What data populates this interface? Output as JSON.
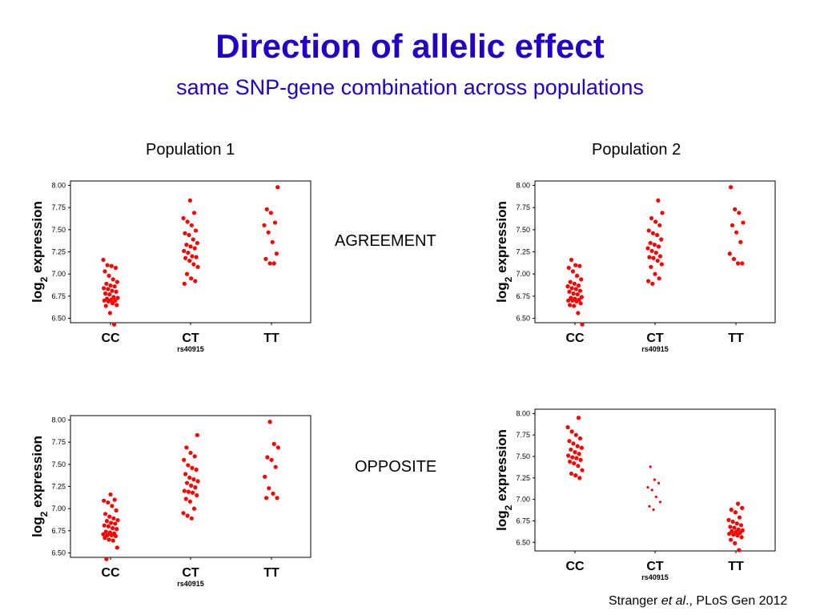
{
  "title": "Direction of allelic effect",
  "subtitle": "same SNP-gene combination across populations",
  "population_labels": [
    "Population 1",
    "Population 2"
  ],
  "row_labels": [
    "AGREEMENT",
    "OPPOSITE"
  ],
  "citation": {
    "author": "Stranger ",
    "etal": "et al",
    "rest": "., PLoS Gen 2012"
  },
  "chart_data": [
    {
      "type": "scatter",
      "title": "",
      "xlabel": "rs40915",
      "ylabel_base": "log",
      "ylabel_sub": "2",
      "ylabel_rest": " expression",
      "categories": [
        "CC",
        "CT",
        "TT"
      ],
      "ylim": [
        6.45,
        8.05
      ],
      "yticks": [
        "8.00",
        "7.75",
        "7.50",
        "7.25",
        "7.00",
        "6.75",
        "6.50"
      ],
      "color": "#ff0000",
      "groups": [
        {
          "category": "CC",
          "values": [
            7.16,
            7.1,
            7.09,
            7.07,
            7.03,
            6.98,
            6.94,
            6.91,
            6.89,
            6.87,
            6.86,
            6.84,
            6.83,
            6.81,
            6.8,
            6.78,
            6.77,
            6.74,
            6.73,
            6.72,
            6.71,
            6.7,
            6.7,
            6.69,
            6.67,
            6.65,
            6.64,
            6.56,
            6.43
          ]
        },
        {
          "category": "CT",
          "values": [
            7.83,
            7.69,
            7.63,
            7.59,
            7.55,
            7.49,
            7.46,
            7.44,
            7.39,
            7.35,
            7.33,
            7.31,
            7.29,
            7.26,
            7.24,
            7.2,
            7.19,
            7.18,
            7.15,
            7.11,
            7.08,
            7.0,
            6.95,
            6.92,
            6.89
          ]
        },
        {
          "category": "TT",
          "values": [
            7.98,
            7.73,
            7.69,
            7.58,
            7.55,
            7.47,
            7.36,
            7.23,
            7.17,
            7.12,
            7.12
          ]
        }
      ]
    },
    {
      "type": "scatter",
      "title": "",
      "xlabel": "rs40915",
      "ylabel_base": "log",
      "ylabel_sub": "2",
      "ylabel_rest": " expression",
      "categories": [
        "CC",
        "CT",
        "TT"
      ],
      "ylim": [
        6.45,
        8.05
      ],
      "yticks": [
        "8.00",
        "7.75",
        "7.50",
        "7.25",
        "7.00",
        "6.75",
        "6.50"
      ],
      "color": "#ff0000",
      "groups": [
        {
          "category": "CC",
          "values": [
            7.16,
            7.1,
            7.09,
            7.07,
            7.03,
            6.98,
            6.94,
            6.91,
            6.89,
            6.87,
            6.86,
            6.84,
            6.83,
            6.81,
            6.8,
            6.78,
            6.77,
            6.74,
            6.73,
            6.72,
            6.71,
            6.7,
            6.7,
            6.69,
            6.67,
            6.65,
            6.64,
            6.56,
            6.43
          ]
        },
        {
          "category": "CT",
          "values": [
            7.83,
            7.69,
            7.63,
            7.59,
            7.55,
            7.49,
            7.46,
            7.44,
            7.39,
            7.35,
            7.33,
            7.31,
            7.29,
            7.26,
            7.24,
            7.2,
            7.19,
            7.18,
            7.15,
            7.11,
            7.08,
            7.0,
            6.95,
            6.92,
            6.89
          ]
        },
        {
          "category": "TT",
          "values": [
            7.98,
            7.73,
            7.69,
            7.58,
            7.55,
            7.47,
            7.36,
            7.23,
            7.17,
            7.12,
            7.12
          ]
        }
      ]
    },
    {
      "type": "scatter",
      "title": "",
      "xlabel": "rs40915",
      "ylabel_base": "log",
      "ylabel_sub": "2",
      "ylabel_rest": " expression",
      "categories": [
        "CC",
        "CT",
        "TT"
      ],
      "ylim": [
        6.45,
        8.05
      ],
      "yticks": [
        "8.00",
        "7.75",
        "7.50",
        "7.25",
        "7.00",
        "6.75",
        "6.50"
      ],
      "color": "#ff0000",
      "groups": [
        {
          "category": "CC",
          "values": [
            7.16,
            7.1,
            7.09,
            7.07,
            7.03,
            6.98,
            6.94,
            6.91,
            6.89,
            6.87,
            6.86,
            6.84,
            6.83,
            6.81,
            6.8,
            6.78,
            6.77,
            6.74,
            6.73,
            6.72,
            6.71,
            6.7,
            6.7,
            6.69,
            6.67,
            6.65,
            6.64,
            6.56,
            6.43
          ]
        },
        {
          "category": "CT",
          "values": [
            7.83,
            7.69,
            7.63,
            7.59,
            7.55,
            7.49,
            7.46,
            7.44,
            7.39,
            7.35,
            7.33,
            7.31,
            7.29,
            7.26,
            7.24,
            7.2,
            7.19,
            7.18,
            7.15,
            7.11,
            7.08,
            7.0,
            6.95,
            6.92,
            6.89
          ]
        },
        {
          "category": "TT",
          "values": [
            7.98,
            7.73,
            7.69,
            7.58,
            7.55,
            7.47,
            7.36,
            7.23,
            7.17,
            7.12,
            7.12
          ]
        }
      ]
    },
    {
      "type": "scatter",
      "title": "",
      "xlabel": "rs40915",
      "ylabel_base": "log",
      "ylabel_sub": "2",
      "ylabel_rest": " expression",
      "categories": [
        "CC",
        "CT",
        "TT"
      ],
      "ylim": [
        6.4,
        8.05
      ],
      "yticks": [
        "8.00",
        "7.75",
        "7.50",
        "7.25",
        "7.00",
        "6.75",
        "6.50"
      ],
      "color": "#ff0000",
      "groups": [
        {
          "category": "CC",
          "values": [
            7.95,
            7.84,
            7.79,
            7.75,
            7.71,
            7.68,
            7.65,
            7.62,
            7.6,
            7.58,
            7.55,
            7.53,
            7.51,
            7.49,
            7.48,
            7.46,
            7.44,
            7.42,
            7.39,
            7.34,
            7.3,
            7.28,
            7.25
          ]
        },
        {
          "category": "CT",
          "values": [
            7.38,
            7.23,
            7.19,
            7.14,
            7.11,
            7.03,
            6.97,
            6.92,
            6.88
          ]
        },
        {
          "category": "TT",
          "values": [
            6.95,
            6.9,
            6.88,
            6.85,
            6.79,
            6.76,
            6.74,
            6.72,
            6.7,
            6.68,
            6.67,
            6.65,
            6.64,
            6.63,
            6.62,
            6.61,
            6.6,
            6.59,
            6.58,
            6.56,
            6.53,
            6.49,
            6.41
          ]
        }
      ]
    }
  ]
}
